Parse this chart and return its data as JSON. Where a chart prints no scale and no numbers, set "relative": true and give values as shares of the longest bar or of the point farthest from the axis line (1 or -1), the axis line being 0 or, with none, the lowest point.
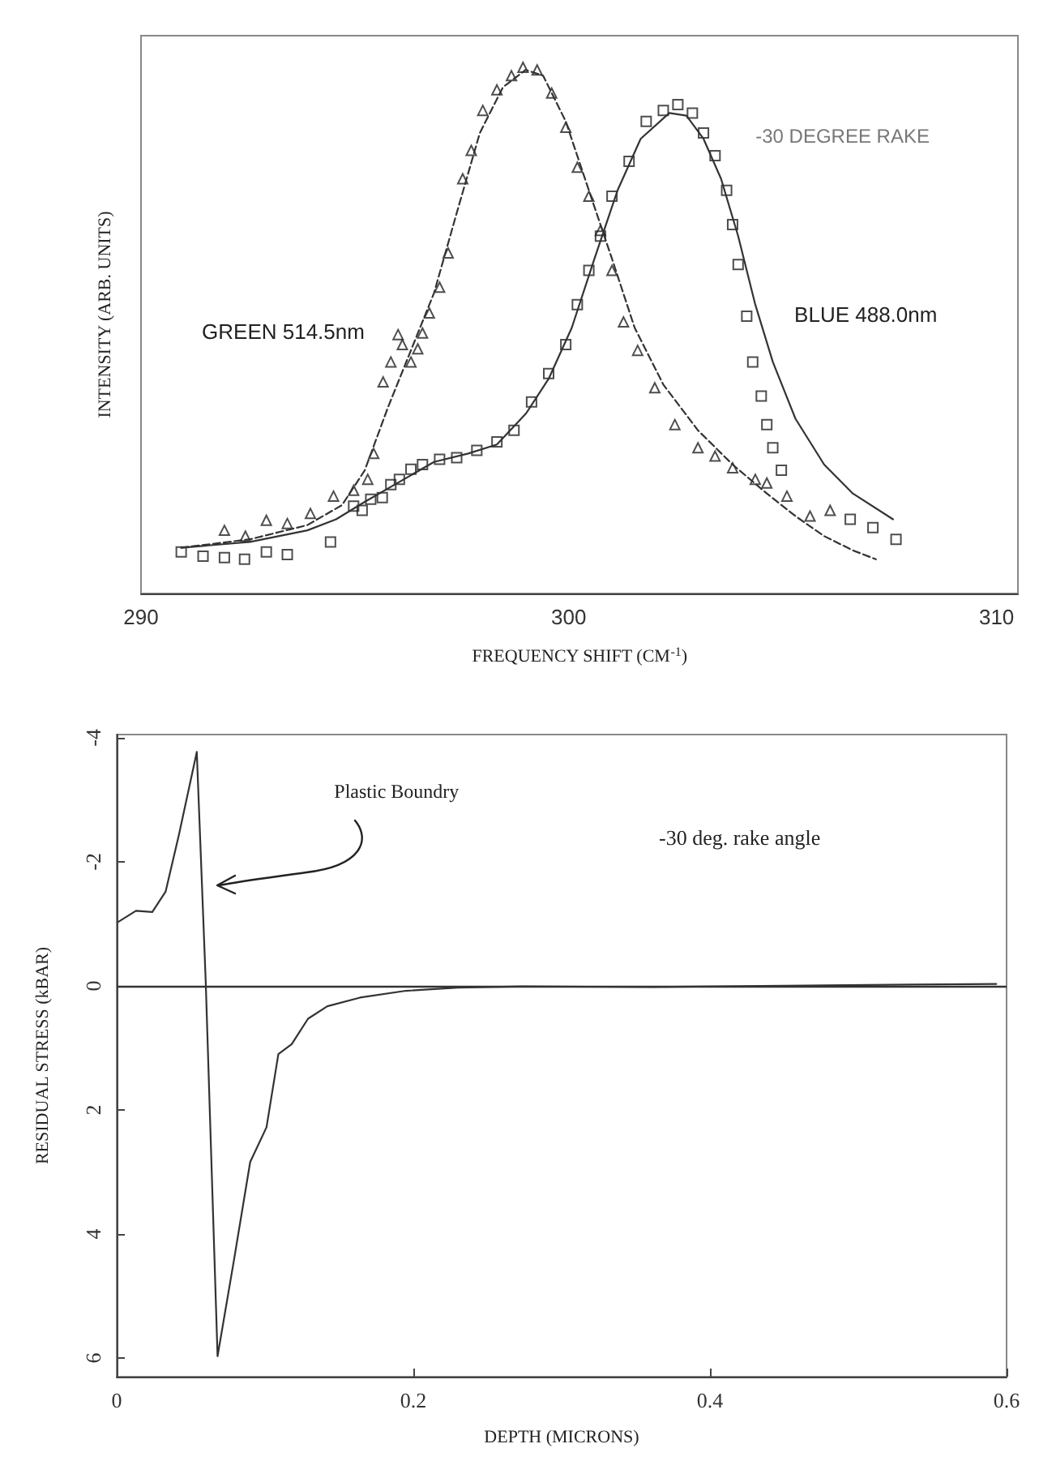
{
  "chart_data": [
    {
      "type": "scatter",
      "xlabel": "FREQUENCY SHIFT (CM$^{-1}$)",
      "ylabel": "INTENSITY (ARB. UNITS)",
      "relative": true,
      "xlim": [
        290,
        310.5
      ],
      "xticks": [
        290,
        300,
        310
      ],
      "grid": false,
      "annotations": [
        "-30 DEGREE RAKE"
      ],
      "series": [
        {
          "name": "GREEN 514.5nm",
          "type": "scatter",
          "marker": "triangle",
          "color": "#222222",
          "x": [
            291.95,
            292.44,
            292.93,
            293.42,
            293.96,
            294.5,
            294.97,
            295.3,
            295.44,
            295.66,
            295.84,
            296.01,
            296.11,
            296.31,
            296.47,
            296.58,
            296.74,
            296.98,
            297.18,
            297.52,
            297.72,
            297.99,
            298.32,
            298.66,
            298.93,
            299.26,
            299.6,
            299.93,
            300.2,
            300.47,
            300.74,
            301.01,
            301.28,
            301.61,
            302.01,
            302.48,
            303.02,
            303.42,
            303.83,
            304.36,
            304.63,
            305.1,
            305.64,
            306.11
          ],
          "values": [
            0.12,
            0.109,
            0.139,
            0.133,
            0.152,
            0.185,
            0.196,
            0.217,
            0.266,
            0.402,
            0.44,
            0.492,
            0.473,
            0.44,
            0.465,
            0.495,
            0.533,
            0.582,
            0.647,
            0.788,
            0.842,
            0.918,
            0.957,
            0.984,
            1.0,
            0.995,
            0.951,
            0.886,
            0.81,
            0.755,
            0.69,
            0.614,
            0.516,
            0.462,
            0.391,
            0.321,
            0.277,
            0.261,
            0.239,
            0.217,
            0.21,
            0.185,
            0.147,
            0.158
          ]
        },
        {
          "type": "line",
          "line_style": "dashed",
          "color": "#333333",
          "x": [
            290.94,
            292.55,
            293.89,
            294.7,
            295.23,
            295.77,
            296.31,
            296.85,
            297.38,
            297.92,
            298.46,
            298.99,
            299.4,
            299.93,
            300.47,
            301.01,
            301.54,
            302.21,
            303.02,
            303.83,
            304.63,
            305.3,
            305.97,
            306.64,
            307.18
          ],
          "values": [
            0.087,
            0.103,
            0.13,
            0.168,
            0.234,
            0.353,
            0.462,
            0.571,
            0.723,
            0.875,
            0.962,
            0.995,
            0.984,
            0.897,
            0.766,
            0.636,
            0.505,
            0.397,
            0.31,
            0.245,
            0.19,
            0.147,
            0.109,
            0.082,
            0.065
          ]
        },
        {
          "name": "BLUE 488.0nm",
          "type": "scatter",
          "marker": "square",
          "color": "#222222",
          "x": [
            290.94,
            291.45,
            291.95,
            292.42,
            292.93,
            293.42,
            294.43,
            294.97,
            295.17,
            295.37,
            295.64,
            295.84,
            296.04,
            296.31,
            296.58,
            296.98,
            297.38,
            297.85,
            298.32,
            298.72,
            299.13,
            299.53,
            299.93,
            300.2,
            300.47,
            300.74,
            301.01,
            301.41,
            301.81,
            302.21,
            302.55,
            302.89,
            303.15,
            303.42,
            303.69,
            303.83,
            303.96,
            304.16,
            304.3,
            304.5,
            304.63,
            304.77,
            304.97,
            306.58,
            307.11,
            307.65
          ],
          "values": [
            0.079,
            0.071,
            0.068,
            0.065,
            0.079,
            0.074,
            0.098,
            0.166,
            0.158,
            0.179,
            0.182,
            0.207,
            0.217,
            0.236,
            0.245,
            0.255,
            0.258,
            0.272,
            0.288,
            0.31,
            0.364,
            0.418,
            0.473,
            0.549,
            0.614,
            0.679,
            0.755,
            0.821,
            0.897,
            0.918,
            0.929,
            0.913,
            0.875,
            0.832,
            0.766,
            0.701,
            0.625,
            0.527,
            0.44,
            0.375,
            0.321,
            0.277,
            0.234,
            0.141,
            0.125,
            0.103
          ]
        },
        {
          "type": "line",
          "line_style": "solid",
          "color": "#333333",
          "x": [
            290.94,
            292.55,
            293.89,
            294.56,
            295.23,
            296.04,
            296.85,
            297.65,
            298.32,
            299.0,
            299.53,
            300.07,
            300.6,
            301.14,
            301.68,
            302.35,
            302.75,
            303.15,
            303.56,
            303.96,
            304.36,
            304.77,
            305.3,
            305.97,
            306.64,
            307.58
          ],
          "values": [
            0.087,
            0.098,
            0.12,
            0.141,
            0.174,
            0.212,
            0.25,
            0.266,
            0.283,
            0.342,
            0.408,
            0.505,
            0.636,
            0.766,
            0.864,
            0.913,
            0.908,
            0.864,
            0.788,
            0.679,
            0.549,
            0.44,
            0.332,
            0.245,
            0.19,
            0.141
          ]
        }
      ]
    },
    {
      "type": "line",
      "xlabel": "DEPTH (MICRONS)",
      "ylabel": "RESIDUAL STRESS (kBAR)",
      "xlim": [
        0,
        0.6
      ],
      "xticks": [
        0,
        0.2,
        0.4,
        0.6
      ],
      "ylim": [
        6.3,
        -4.05
      ],
      "yticks": [
        -4,
        -2,
        0,
        2,
        4,
        6
      ],
      "grid": false,
      "marker": "none",
      "line_style": "solid",
      "annotations": [
        {
          "text": "Plastic Boundry",
          "x": 0.063,
          "y": -1.62
        },
        "-30 deg. rake angle"
      ],
      "ref_lines": [
        {
          "axis": "y",
          "value": 0,
          "color": "#333333"
        }
      ],
      "series": [
        {
          "color": "#333333",
          "x": [
            0.001,
            0.013,
            0.024,
            0.033,
            0.042,
            0.054,
            0.06,
            0.068,
            0.079,
            0.09,
            0.101,
            0.109,
            0.118,
            0.129,
            0.142,
            0.164,
            0.195,
            0.23,
            0.274,
            0.361,
            0.449,
            0.536,
            0.593
          ],
          "values": [
            -1.03,
            -1.21,
            -1.19,
            -1.52,
            -2.44,
            -3.77,
            -0.08,
            5.97,
            4.43,
            2.84,
            2.28,
            1.1,
            0.94,
            0.53,
            0.33,
            0.19,
            0.08,
            0.03,
            0.01,
            0.02,
            0.0,
            -0.02,
            -0.03
          ]
        }
      ]
    }
  ]
}
